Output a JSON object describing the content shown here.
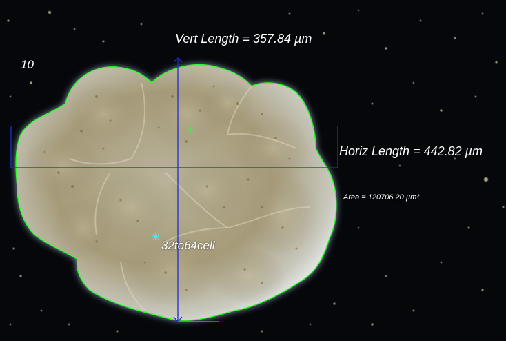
{
  "frame_label": "10",
  "measurements": {
    "vertical": "Vert Length = 357.84 µm",
    "horizontal": "Horiz Length = 442.82 µm",
    "area": "Area = 120706.20 µm²"
  },
  "stage_label": "32to64cell",
  "colors": {
    "background": "#05070b",
    "outline": "#2aff2a",
    "axis": "#1f2fd0",
    "marker_green": "#22ff44",
    "marker_cyan": "#2affff",
    "text": "#ffffff"
  }
}
